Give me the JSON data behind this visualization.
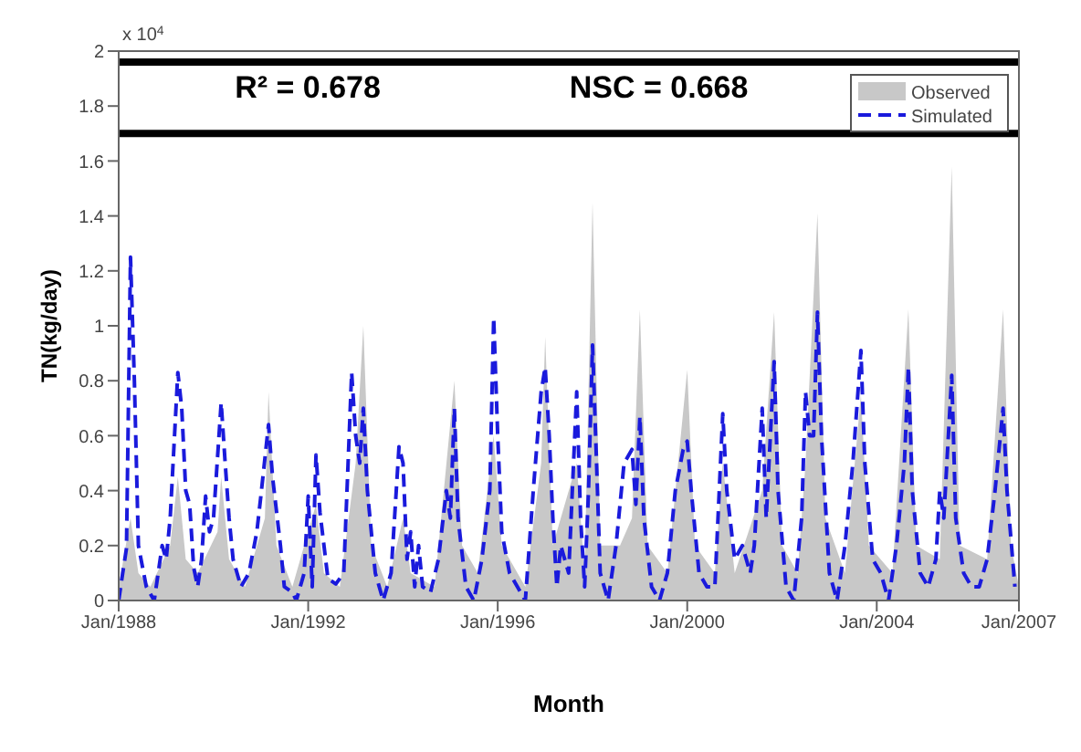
{
  "chart_data": {
    "type": "area",
    "xlabel": "Month",
    "ylabel": "TN(kg/day)",
    "annotations": [
      "x 10$^{4}$",
      "R² = 0.678",
      "NSC = 0.668"
    ],
    "xlim": [
      "1988-01",
      "2007-01"
    ],
    "xticks": [
      {
        "value": "1988-01",
        "label": "Jan/1988"
      },
      {
        "value": "1992-01",
        "label": "Jan/1992"
      },
      {
        "value": "1996-01",
        "label": "Jan/1996"
      },
      {
        "value": "2000-01",
        "label": "Jan/2000"
      },
      {
        "value": "2004-01",
        "label": "Jan/2004"
      },
      {
        "value": "2007-01",
        "label": "Jan/2007"
      }
    ],
    "ylim": [
      0,
      2
    ],
    "yticks": [
      0,
      0.2,
      0.4,
      0.6,
      0.8,
      1,
      1.2,
      1.4,
      1.6,
      1.8,
      2
    ],
    "grid": false,
    "legend": "top right",
    "ref_lines": [
      {
        "axis": "y",
        "value": 1.96,
        "color": "#000000"
      },
      {
        "axis": "y",
        "value": 1.7,
        "color": "#000000"
      }
    ],
    "series": [
      {
        "name": "Observed",
        "color": "#c8c8c8",
        "x": [
          "1988-01",
          "1988-04",
          "1988-06",
          "1988-09",
          "1989-02",
          "1989-04",
          "1989-06",
          "1989-09",
          "1990-02",
          "1990-03",
          "1990-05",
          "1990-09",
          "1991-02",
          "1991-03",
          "1991-05",
          "1991-09",
          "1992-03",
          "1992-05",
          "1992-09",
          "1993-01",
          "1993-03",
          "1993-05",
          "1993-09",
          "1994-01",
          "1994-03",
          "1994-09",
          "1995-02",
          "1995-04",
          "1995-08",
          "1995-12",
          "1996-02",
          "1996-08",
          "1996-12",
          "1997-01",
          "1997-03",
          "1997-09",
          "1997-11",
          "1998-01",
          "1998-03",
          "1998-08",
          "1998-11",
          "1999-01",
          "1999-03",
          "1999-08",
          "2000-01",
          "2000-03",
          "2000-08",
          "2000-10",
          "2001-01",
          "2001-08",
          "2001-11",
          "2002-01",
          "2002-05",
          "2002-07",
          "2002-10",
          "2002-12",
          "2003-05",
          "2003-09",
          "2003-11",
          "2004-05",
          "2004-09",
          "2004-11",
          "2005-05",
          "2005-08",
          "2005-10",
          "2006-05",
          "2006-09",
          "2006-11",
          "2007-01"
        ],
        "values": [
          0.05,
          0.3,
          0.1,
          0.05,
          0.2,
          0.45,
          0.15,
          0.1,
          0.25,
          0.45,
          0.15,
          0.05,
          0.3,
          0.76,
          0.2,
          0.05,
          0.35,
          0.1,
          0.05,
          0.5,
          1.0,
          0.2,
          0.05,
          0.3,
          0.1,
          0.05,
          0.8,
          0.2,
          0.1,
          0.6,
          0.2,
          0.05,
          0.5,
          0.96,
          0.2,
          0.5,
          0.1,
          1.45,
          0.2,
          0.2,
          0.3,
          1.06,
          0.2,
          0.1,
          0.84,
          0.2,
          0.1,
          0.5,
          0.1,
          0.4,
          1.05,
          0.2,
          0.1,
          0.5,
          1.41,
          0.3,
          0.1,
          0.75,
          0.2,
          0.1,
          1.06,
          0.2,
          0.15,
          1.58,
          0.2,
          0.15,
          1.06,
          0.2,
          0.05
        ]
      },
      {
        "name": "Simulated",
        "type": "line",
        "line_style": "dashed",
        "color": "#1a1adc",
        "x": [
          "1988-01",
          "1988-02",
          "1988-03",
          "1988-04",
          "1988-05",
          "1988-06",
          "1988-08",
          "1988-10",
          "1988-12",
          "1989-01",
          "1989-02",
          "1989-04",
          "1989-05",
          "1989-06",
          "1989-07",
          "1989-08",
          "1989-09",
          "1989-10",
          "1989-11",
          "1989-12",
          "1990-01",
          "1990-03",
          "1990-04",
          "1990-05",
          "1990-06",
          "1990-08",
          "1990-10",
          "1990-12",
          "1991-01",
          "1991-03",
          "1991-04",
          "1991-06",
          "1991-07",
          "1991-09",
          "1991-10",
          "1991-12",
          "1992-01",
          "1992-02",
          "1992-03",
          "1992-04",
          "1992-06",
          "1992-08",
          "1992-10",
          "1992-12",
          "1993-01",
          "1993-02",
          "1993-03",
          "1993-04",
          "1993-06",
          "1993-08",
          "1993-10",
          "1993-12",
          "1994-01",
          "1994-02",
          "1994-03",
          "1994-04",
          "1994-05",
          "1994-06",
          "1994-08",
          "1994-10",
          "1994-12",
          "1995-01",
          "1995-02",
          "1995-03",
          "1995-05",
          "1995-07",
          "1995-09",
          "1995-11",
          "1995-12",
          "1996-01",
          "1996-02",
          "1996-04",
          "1996-06",
          "1996-08",
          "1996-10",
          "1996-12",
          "1997-01",
          "1997-02",
          "1997-03",
          "1997-04",
          "1997-05",
          "1997-07",
          "1997-09",
          "1997-10",
          "1997-11",
          "1997-12",
          "1998-01",
          "1998-02",
          "1998-03",
          "1998-05",
          "1998-07",
          "1998-09",
          "1998-11",
          "1998-12",
          "1999-01",
          "1999-02",
          "1999-04",
          "1999-06",
          "1999-08",
          "1999-10",
          "1999-12",
          "2000-01",
          "2000-02",
          "2000-04",
          "2000-06",
          "2000-08",
          "2000-10",
          "2000-11",
          "2001-01",
          "2001-03",
          "2001-05",
          "2001-06",
          "2001-08",
          "2001-09",
          "2001-11",
          "2001-12",
          "2002-02",
          "2002-04",
          "2002-06",
          "2002-07",
          "2002-08",
          "2002-09",
          "2002-10",
          "2002-11",
          "2003-01",
          "2003-03",
          "2003-05",
          "2003-07",
          "2003-09",
          "2003-10",
          "2003-12",
          "2004-02",
          "2004-04",
          "2004-06",
          "2004-08",
          "2004-09",
          "2004-10",
          "2004-12",
          "2005-02",
          "2005-04",
          "2005-05",
          "2005-06",
          "2005-08",
          "2005-09",
          "2005-11",
          "2006-01",
          "2006-03",
          "2006-05",
          "2006-07",
          "2006-09",
          "2006-10",
          "2006-12"
        ],
        "values": [
          0.0,
          0.1,
          0.19,
          1.25,
          0.8,
          0.2,
          0.05,
          0.0,
          0.2,
          0.15,
          0.3,
          0.83,
          0.7,
          0.4,
          0.35,
          0.12,
          0.05,
          0.15,
          0.38,
          0.25,
          0.3,
          0.72,
          0.5,
          0.3,
          0.15,
          0.05,
          0.1,
          0.25,
          0.38,
          0.64,
          0.45,
          0.2,
          0.05,
          0.03,
          0.0,
          0.1,
          0.38,
          0.05,
          0.53,
          0.32,
          0.08,
          0.06,
          0.1,
          0.83,
          0.6,
          0.5,
          0.7,
          0.4,
          0.1,
          0.0,
          0.1,
          0.56,
          0.5,
          0.15,
          0.25,
          0.05,
          0.2,
          0.05,
          0.03,
          0.15,
          0.4,
          0.3,
          0.7,
          0.3,
          0.05,
          0.0,
          0.15,
          0.4,
          1.03,
          0.6,
          0.25,
          0.1,
          0.05,
          0.0,
          0.4,
          0.76,
          0.85,
          0.6,
          0.3,
          0.05,
          0.2,
          0.1,
          0.76,
          0.3,
          0.05,
          0.4,
          0.93,
          0.5,
          0.1,
          0.0,
          0.2,
          0.5,
          0.55,
          0.35,
          0.67,
          0.3,
          0.05,
          0.0,
          0.1,
          0.4,
          0.55,
          0.58,
          0.4,
          0.1,
          0.05,
          0.05,
          0.68,
          0.4,
          0.15,
          0.2,
          0.1,
          0.2,
          0.7,
          0.3,
          0.87,
          0.4,
          0.05,
          0.0,
          0.3,
          0.76,
          0.6,
          0.6,
          1.05,
          0.6,
          0.1,
          0.0,
          0.2,
          0.5,
          0.91,
          0.5,
          0.15,
          0.1,
          0.0,
          0.2,
          0.5,
          0.85,
          0.4,
          0.1,
          0.05,
          0.15,
          0.4,
          0.3,
          0.82,
          0.3,
          0.1,
          0.05,
          0.05,
          0.15,
          0.4,
          0.7,
          0.4,
          0.05
        ]
      }
    ]
  }
}
